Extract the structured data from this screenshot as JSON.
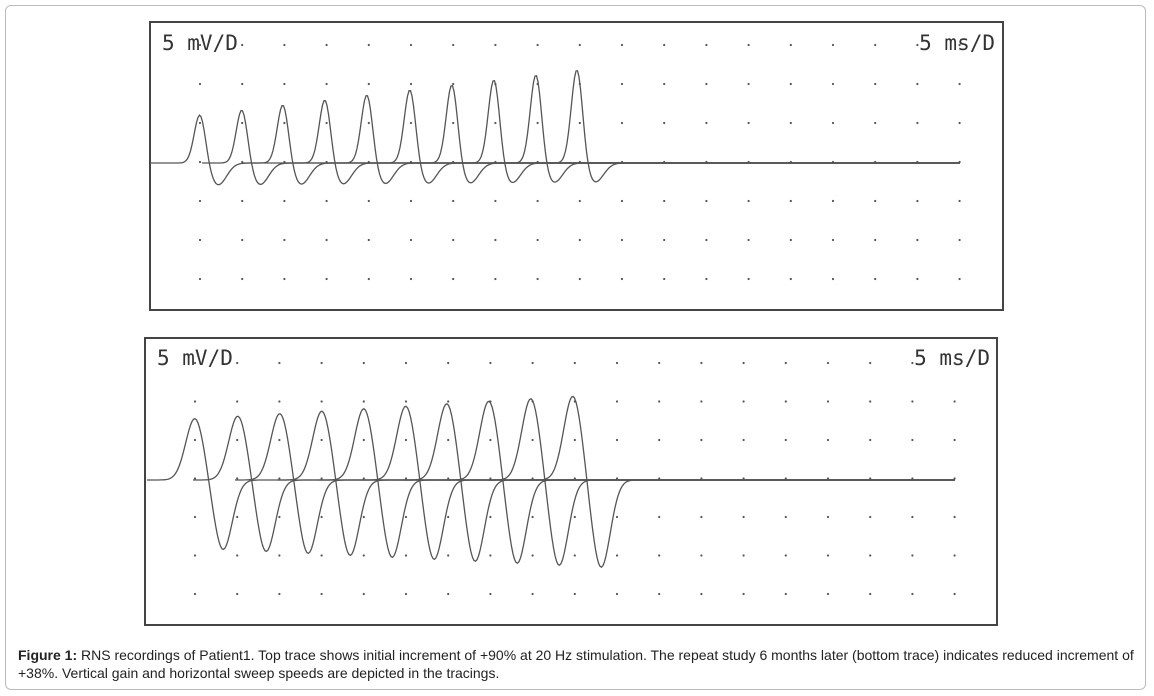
{
  "panels": [
    {
      "gain": "5 mV/D",
      "sweep": "5 ms/D"
    },
    {
      "gain": "5 mV/D",
      "sweep": "5 ms/D"
    }
  ],
  "caption": {
    "label": "Figure 1:",
    "text": "RNS recordings of Patient1. Top trace shows initial increment of +90% at 20 Hz stimulation. The repeat study 6 months later (bottom trace) indicates reduced increment of +38%. Vertical gain and horizontal sweep speeds are depicted in the tracings."
  }
}
